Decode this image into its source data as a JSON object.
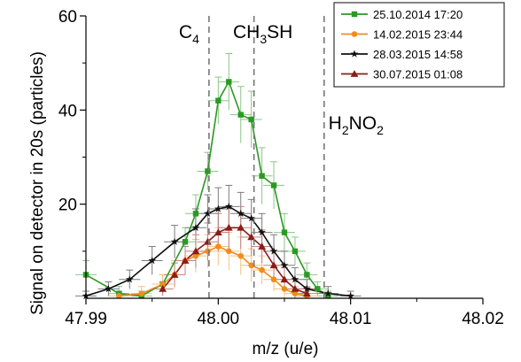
{
  "chart_data": {
    "type": "line",
    "xlabel": "m/z (u/e)",
    "ylabel": "Signal on detector in 20s (particles)",
    "xlim": [
      47.99,
      48.02
    ],
    "ylim": [
      0,
      60
    ],
    "x_ticks": [
      "47.99",
      "48.00",
      "48.01",
      "48.02"
    ],
    "x_tick_values": [
      47.99,
      48.0,
      48.01,
      48.02
    ],
    "y_ticks": [
      "20",
      "40",
      "60"
    ],
    "y_tick_values": [
      20,
      40,
      60
    ],
    "grid": false,
    "legend_position": "top-right",
    "reference_lines": [
      {
        "x": 47.9993,
        "label_main": "C",
        "label_sub": "4",
        "label_tail": ""
      },
      {
        "x": 48.0027,
        "label_main": "CH",
        "label_sub": "3",
        "label_tail": "SH"
      },
      {
        "x": 48.008,
        "label_main": "H",
        "label_sub": "2",
        "label_tail": "NO",
        "label_sub2": "2"
      }
    ],
    "series": [
      {
        "name": "25.10.2014 17:20",
        "color": "#2a9a22",
        "marker": "square",
        "points": [
          [
            47.99,
            5,
            3
          ],
          [
            47.9925,
            1,
            1.5
          ],
          [
            47.9942,
            0.5,
            1
          ],
          [
            47.9958,
            3,
            2
          ],
          [
            47.9975,
            12,
            3
          ],
          [
            47.9983,
            18,
            4
          ],
          [
            47.9992,
            27,
            4
          ],
          [
            48.0,
            42,
            5
          ],
          [
            48.0008,
            46,
            6
          ],
          [
            48.0017,
            39,
            6
          ],
          [
            48.0025,
            38,
            6
          ],
          [
            48.0033,
            26,
            6
          ],
          [
            48.0042,
            24,
            5
          ],
          [
            48.005,
            14,
            4
          ],
          [
            48.0058,
            10,
            3
          ],
          [
            48.0067,
            5,
            2.5
          ],
          [
            48.0075,
            2,
            1.5
          ],
          [
            48.0083,
            0.5,
            1
          ]
        ]
      },
      {
        "name": "14.02.2015 23:44",
        "color": "#f08c1e",
        "marker": "circle",
        "points": [
          [
            47.9925,
            0.5,
            1
          ],
          [
            47.9942,
            1,
            1.5
          ],
          [
            47.9958,
            3,
            2
          ],
          [
            47.9967,
            5,
            3
          ],
          [
            47.9975,
            8,
            3
          ],
          [
            47.9983,
            9,
            3.5
          ],
          [
            47.9992,
            10,
            3.5
          ],
          [
            48.0,
            11,
            4
          ],
          [
            48.0008,
            10,
            4
          ],
          [
            48.0017,
            9,
            4
          ],
          [
            48.0025,
            7,
            3.5
          ],
          [
            48.0033,
            6,
            3
          ],
          [
            48.0042,
            4,
            2.5
          ],
          [
            48.005,
            2,
            2
          ],
          [
            48.0058,
            1,
            1.5
          ],
          [
            48.0067,
            0.5,
            1
          ]
        ]
      },
      {
        "name": "28.03.2015 14:58",
        "color": "#111111",
        "marker": "star",
        "points": [
          [
            47.99,
            0.5,
            1
          ],
          [
            47.9917,
            2,
            1.5
          ],
          [
            47.9933,
            4,
            2
          ],
          [
            47.995,
            8,
            3
          ],
          [
            47.9967,
            12,
            3.5
          ],
          [
            47.9983,
            15,
            4
          ],
          [
            47.9992,
            18,
            4
          ],
          [
            48.0,
            19,
            4.5
          ],
          [
            48.0008,
            19.5,
            4.5
          ],
          [
            48.0017,
            18,
            4.5
          ],
          [
            48.0025,
            17,
            4
          ],
          [
            48.0033,
            14,
            4
          ],
          [
            48.0042,
            10,
            3.5
          ],
          [
            48.005,
            7,
            3
          ],
          [
            48.0058,
            4,
            2.5
          ],
          [
            48.0067,
            2,
            2
          ],
          [
            48.0083,
            1,
            1.5
          ],
          [
            48.01,
            0.5,
            1
          ]
        ]
      },
      {
        "name": "30.07.2015  01:08",
        "color": "#8b1c17",
        "marker": "triangle",
        "points": [
          [
            47.9958,
            2,
            1.5
          ],
          [
            47.9967,
            5,
            2.5
          ],
          [
            47.9975,
            8,
            3
          ],
          [
            47.9983,
            10,
            3.5
          ],
          [
            47.9992,
            12,
            4
          ],
          [
            48.0,
            14,
            4
          ],
          [
            48.0008,
            15,
            4.5
          ],
          [
            48.0017,
            15,
            4.5
          ],
          [
            48.0025,
            13,
            4
          ],
          [
            48.0033,
            11,
            3.5
          ],
          [
            48.0042,
            7,
            3
          ],
          [
            48.005,
            4,
            2.5
          ],
          [
            48.0058,
            2,
            2
          ],
          [
            48.0067,
            1,
            1.5
          ]
        ]
      }
    ]
  }
}
